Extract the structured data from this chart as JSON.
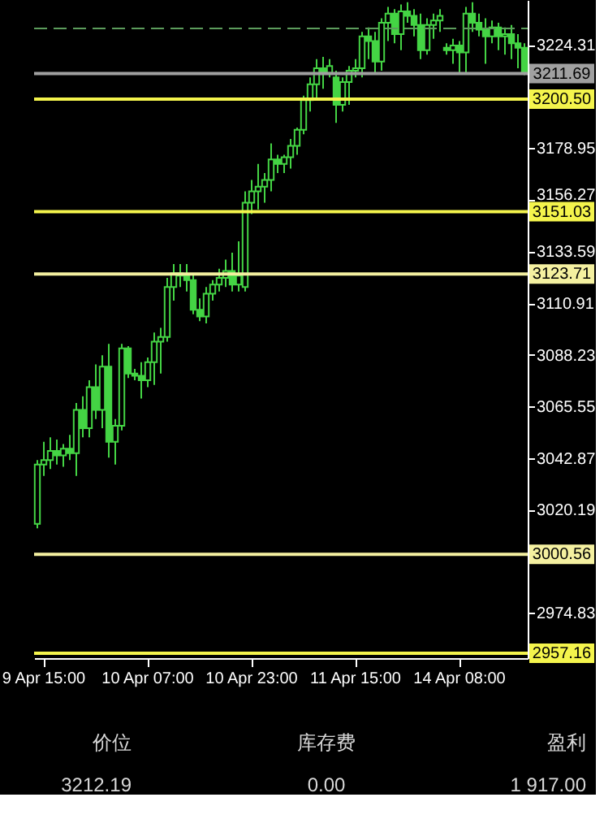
{
  "chart_data": {
    "type": "candlestick",
    "categories": [
      null,
      "9 Apr 15:00",
      null,
      null,
      null,
      null,
      null,
      null,
      null,
      null,
      null,
      null,
      null,
      null,
      null,
      null,
      null,
      "10 Apr 07:00",
      null,
      null,
      null,
      null,
      null,
      null,
      null,
      null,
      null,
      null,
      null,
      null,
      null,
      null,
      null,
      "10 Apr 23:00",
      null,
      null,
      null,
      null,
      null,
      null,
      null,
      null,
      null,
      null,
      null,
      null,
      null,
      null,
      null,
      "11 Apr 15:00",
      null,
      null,
      null,
      null,
      null,
      null,
      null,
      null,
      null,
      null,
      null,
      null,
      null,
      null,
      null,
      "14 Apr 08:00",
      null,
      null,
      null,
      null,
      null,
      null,
      null,
      null,
      null,
      null
    ],
    "color": "#44d444",
    "ohlc": [
      [
        3014,
        3042,
        3012,
        3040
      ],
      [
        3040,
        3050,
        3035,
        3042
      ],
      [
        3042,
        3052,
        3038,
        3046
      ],
      [
        3046,
        3051,
        3040,
        3044
      ],
      [
        3044,
        3049,
        3039,
        3047
      ],
      [
        3047,
        3053,
        3042,
        3045
      ],
      [
        3045,
        3067,
        3035,
        3064
      ],
      [
        3064,
        3070,
        3052,
        3056
      ],
      [
        3056,
        3077,
        3052,
        3074
      ],
      [
        3074,
        3084,
        3060,
        3064
      ],
      [
        3064,
        3088,
        3056,
        3083
      ],
      [
        3083,
        3093,
        3043,
        3050
      ],
      [
        3050,
        3060,
        3040,
        3057
      ],
      [
        3057,
        3093,
        3055,
        3091
      ],
      [
        3091,
        3092,
        3078,
        3080
      ],
      [
        3080,
        3082,
        3077,
        3079
      ],
      [
        3079,
        3085,
        3069,
        3077
      ],
      [
        3077,
        3087,
        3074,
        3085
      ],
      [
        3085,
        3098,
        3075,
        3094
      ],
      [
        3094,
        3100,
        3080,
        3096
      ],
      [
        3096,
        3122,
        3094,
        3118
      ],
      [
        3118,
        3128,
        3112,
        3124
      ],
      [
        3124,
        3128,
        3118,
        3123
      ],
      [
        3123,
        3128,
        3116,
        3121
      ],
      [
        3121,
        3124,
        3106,
        3108
      ],
      [
        3108,
        3113,
        3103,
        3105
      ],
      [
        3105,
        3118,
        3102,
        3115
      ],
      [
        3115,
        3121,
        3112,
        3119
      ],
      [
        3119,
        3126,
        3116,
        3122
      ],
      [
        3122,
        3130,
        3118,
        3125
      ],
      [
        3125,
        3133,
        3116,
        3119
      ],
      [
        3119,
        3138,
        3116,
        3123
      ],
      [
        3118,
        3160,
        3116,
        3155
      ],
      [
        3155,
        3165,
        3150,
        3160
      ],
      [
        3160,
        3172,
        3152,
        3162
      ],
      [
        3162,
        3168,
        3155,
        3165
      ],
      [
        3165,
        3181,
        3160,
        3174
      ],
      [
        3174,
        3176,
        3168,
        3172
      ],
      [
        3172,
        3176,
        3168,
        3175
      ],
      [
        3175,
        3183,
        3170,
        3180
      ],
      [
        3180,
        3188,
        3176,
        3187
      ],
      [
        3187,
        3202,
        3185,
        3200
      ],
      [
        3200,
        3210,
        3195,
        3207
      ],
      [
        3207,
        3218,
        3200,
        3214
      ],
      [
        3214,
        3219,
        3205,
        3212
      ],
      [
        3212,
        3218,
        3210,
        3215
      ],
      [
        3210,
        3213,
        3190,
        3198
      ],
      [
        3198,
        3210,
        3195,
        3208
      ],
      [
        3208,
        3215,
        3198,
        3213
      ],
      [
        3213,
        3218,
        3210,
        3214
      ],
      [
        3214,
        3230,
        3210,
        3228
      ],
      [
        3228,
        3232,
        3218,
        3226
      ],
      [
        3226,
        3230,
        3212,
        3217
      ],
      [
        3217,
        3236,
        3213,
        3234
      ],
      [
        3234,
        3241,
        3226,
        3238
      ],
      [
        3238,
        3240,
        3225,
        3229
      ],
      [
        3229,
        3242,
        3222,
        3239
      ],
      [
        3239,
        3243,
        3234,
        3237
      ],
      [
        3237,
        3240,
        3228,
        3233
      ],
      [
        3233,
        3238,
        3218,
        3222
      ],
      [
        3222,
        3236,
        3220,
        3233
      ],
      [
        3233,
        3238,
        3227,
        3235
      ],
      [
        3235,
        3240,
        3230,
        3237
      ],
      [
        3223,
        3225,
        3220,
        3222
      ],
      [
        3222,
        3227,
        3216,
        3224
      ],
      [
        3224,
        3226,
        3212,
        3221
      ],
      [
        3221,
        3241,
        3212,
        3238
      ],
      [
        3238,
        3243,
        3230,
        3234
      ],
      [
        3234,
        3238,
        3228,
        3231
      ],
      [
        3231,
        3236,
        3216,
        3228
      ],
      [
        3228,
        3235,
        3225,
        3232
      ],
      [
        3232,
        3234,
        3222,
        3228
      ],
      [
        3228,
        3232,
        3220,
        3229
      ],
      [
        3229,
        3233,
        3218,
        3225
      ],
      [
        3225,
        3229,
        3214,
        3223
      ],
      [
        3223,
        3225,
        3211,
        3212
      ]
    ],
    "ylim": [
      2955,
      3244
    ],
    "yticks": [
      2974.83,
      3020.19,
      3042.87,
      3065.55,
      3088.23,
      3110.91,
      3133.59,
      3156.27,
      3178.95,
      3224.31
    ],
    "ref_lines": [
      {
        "axis": "y",
        "value": 3231.5,
        "color": "#5c9c5c",
        "line_style": "dashed"
      },
      {
        "axis": "y",
        "value": 3211.69,
        "label": "3211.69",
        "color": "#a0a0a0"
      },
      {
        "axis": "y",
        "value": 3200.5,
        "label": "3200.50",
        "color": "#f4f44c"
      },
      {
        "axis": "y",
        "value": 3151.03,
        "label": "3151.03",
        "color": "#f4f44c"
      },
      {
        "axis": "y",
        "value": 3123.71,
        "label": "3123.71",
        "color": "#f4f0a0"
      },
      {
        "axis": "y",
        "value": 3000.56,
        "label": "3000.56",
        "color": "#f4f0a0"
      },
      {
        "axis": "y",
        "value": 2957.16,
        "label": "2957.16",
        "color": "#f4f44c"
      }
    ],
    "grid": false,
    "annotations": [
      "价位",
      "库存费",
      "盈利",
      "3212.19",
      "0.00",
      "1 917.00"
    ]
  }
}
